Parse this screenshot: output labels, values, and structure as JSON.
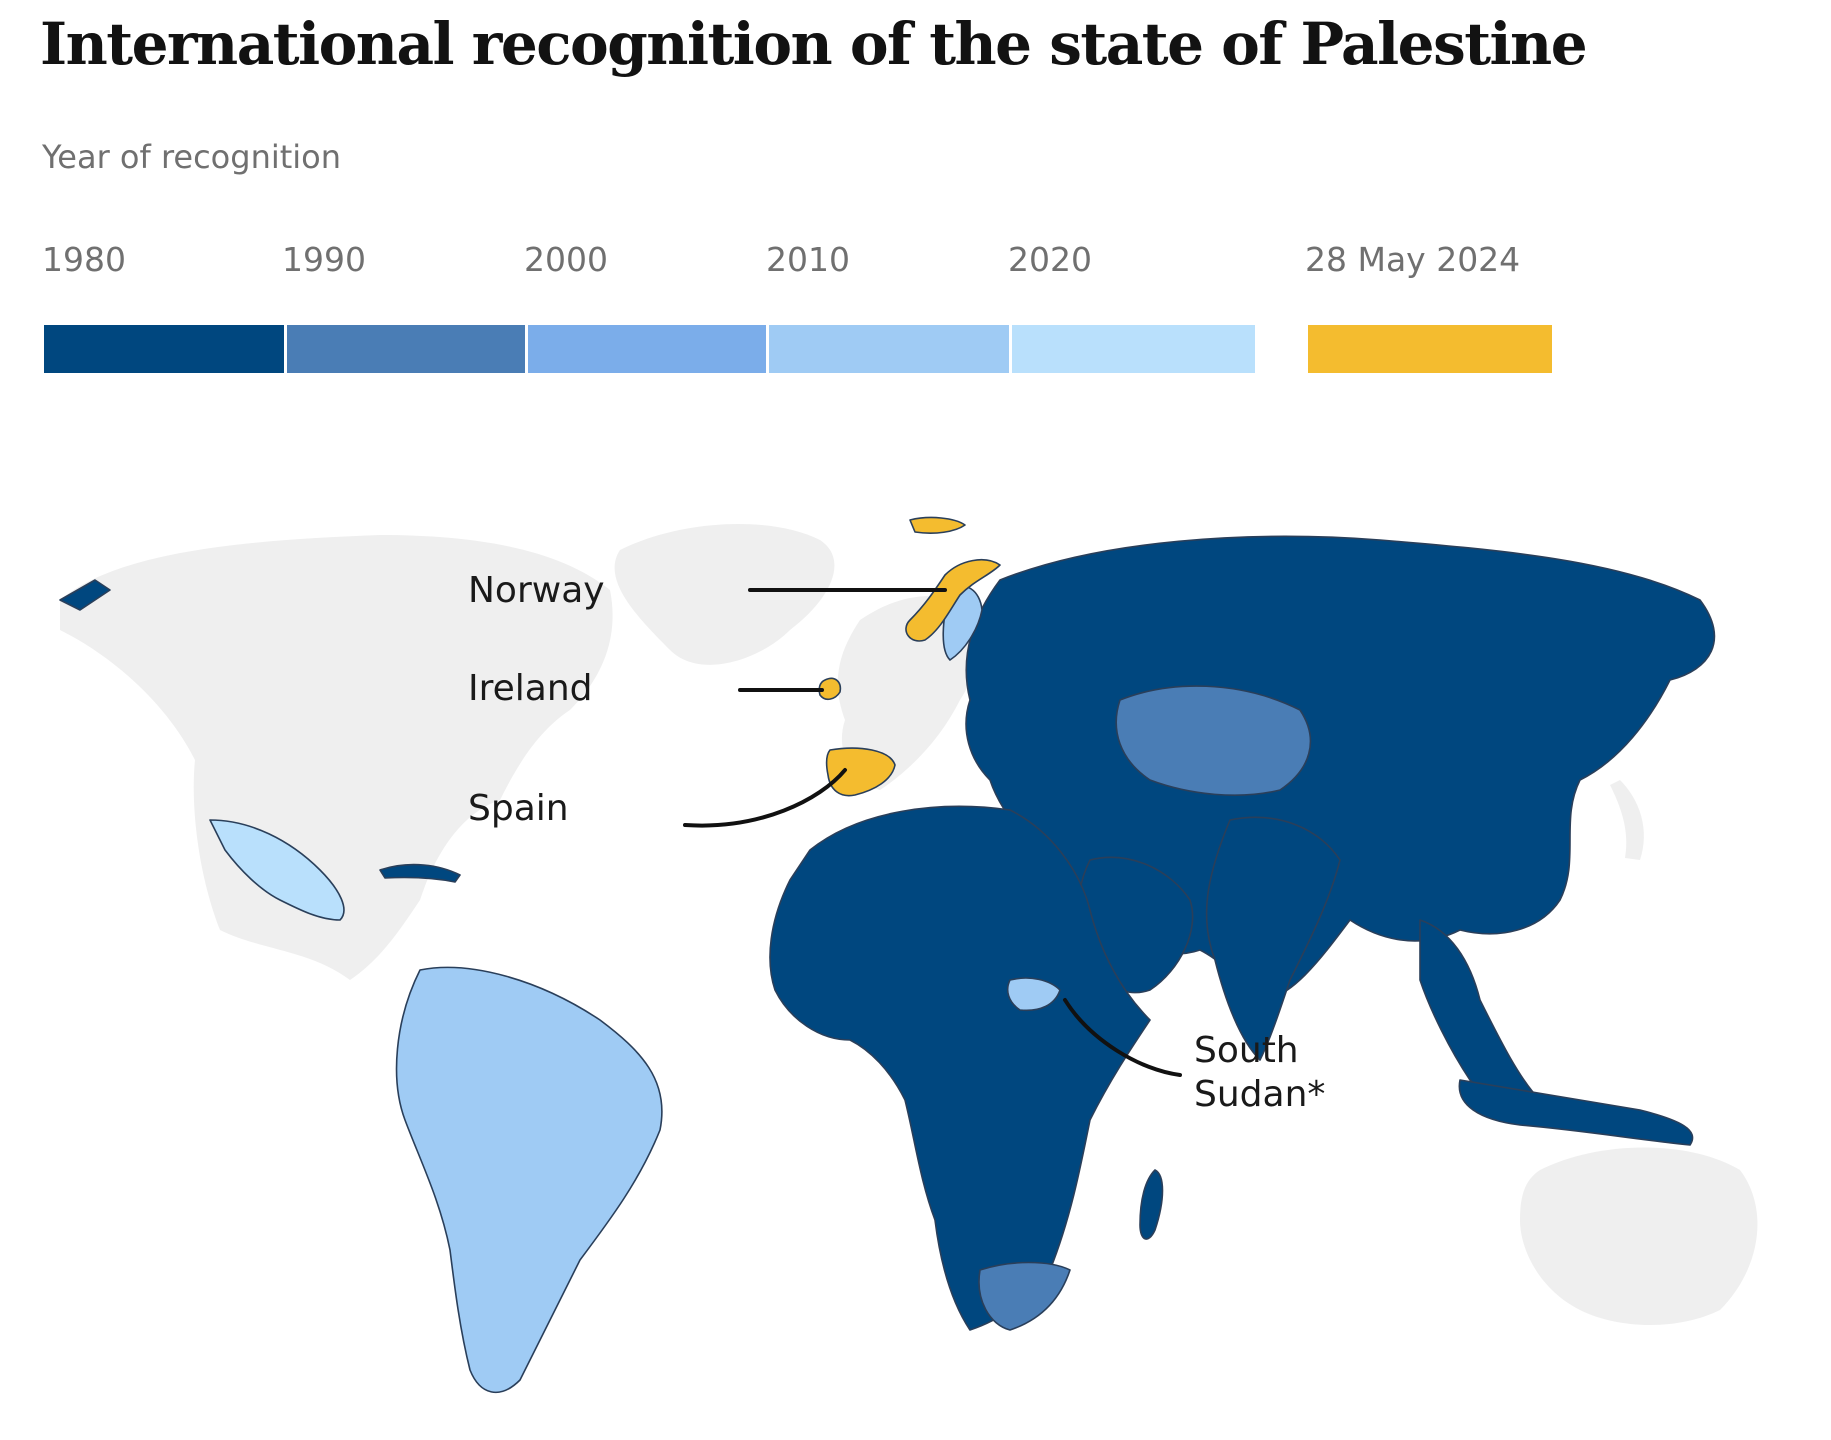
{
  "title": "International recognition of the state of Palestine",
  "legend": {
    "title": "Year of recognition",
    "bins": [
      {
        "label": "1980",
        "color": "#00477f"
      },
      {
        "label": "1990",
        "color": "#4a7db5"
      },
      {
        "label": "2000",
        "color": "#7badea"
      },
      {
        "label": "2010",
        "color": "#9fcbf4"
      },
      {
        "label": "2020",
        "color": "#b9e0fc"
      }
    ],
    "highlight": {
      "label": "28 May 2024",
      "color": "#f4bc2f"
    }
  },
  "map": {
    "no_recognition_color": "#efefef",
    "callouts": [
      {
        "id": "norway",
        "lines": [
          "Norway"
        ]
      },
      {
        "id": "ireland",
        "lines": [
          "Ireland"
        ]
      },
      {
        "id": "spain",
        "lines": [
          "Spain"
        ]
      },
      {
        "id": "south-sudan",
        "lines": [
          "South",
          "Sudan*"
        ]
      }
    ]
  }
}
